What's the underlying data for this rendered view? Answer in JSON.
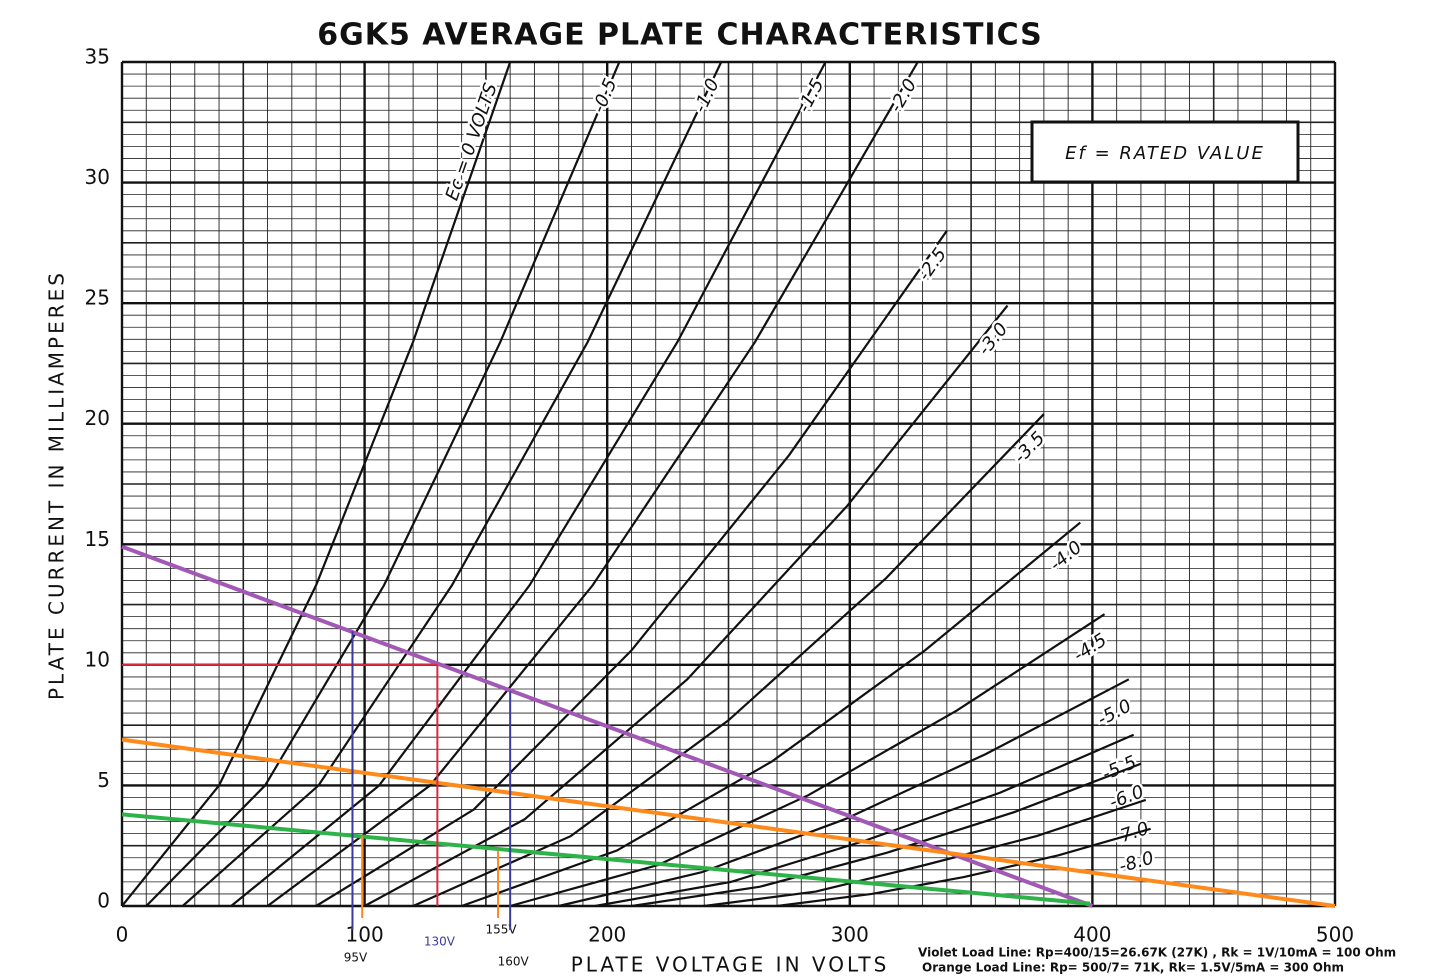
{
  "chart_data": {
    "type": "line",
    "title": "6GK5 AVERAGE PLATE CHARACTERISTICS",
    "xlabel": "PLATE VOLTAGE IN VOLTS",
    "ylabel": "PLATE CURRENT IN MILLIAMPERES",
    "xlim": [
      0,
      500
    ],
    "ylim": [
      0,
      35
    ],
    "xticks": [
      0,
      100,
      200,
      300,
      400,
      500
    ],
    "yticks": [
      0,
      5,
      10,
      15,
      20,
      25,
      30,
      35
    ],
    "xminor": 10,
    "yminor": 0.5,
    "grid": true,
    "box_label": "Ef = RATED VALUE",
    "series": [
      {
        "name": "Ec = 0 VOLTS",
        "color": "#111111",
        "x": [
          0,
          40,
          80,
          120,
          160
        ],
        "values": [
          0,
          5,
          13.3,
          23.4,
          35
        ]
      },
      {
        "name": "-0.5",
        "color": "#111111",
        "x": [
          10,
          59,
          108,
          156,
          205
        ],
        "values": [
          0,
          5,
          13.3,
          23.4,
          35
        ]
      },
      {
        "name": "-1.0",
        "color": "#111111",
        "x": [
          25,
          81,
          136,
          192,
          247
        ],
        "values": [
          0,
          5,
          13.3,
          23.4,
          35
        ]
      },
      {
        "name": "-1.5",
        "color": "#111111",
        "x": [
          45,
          106,
          168,
          229,
          290
        ],
        "values": [
          0,
          5,
          13.3,
          23.4,
          35
        ]
      },
      {
        "name": "-2.0",
        "color": "#111111",
        "x": [
          60,
          127,
          194,
          261,
          328
        ],
        "values": [
          0,
          5,
          13.3,
          23.4,
          35
        ]
      },
      {
        "name": "-2.5",
        "color": "#111111",
        "x": [
          80,
          145,
          210,
          275,
          340
        ],
        "values": [
          0,
          4,
          10.6,
          18.7,
          28
        ]
      },
      {
        "name": "-3.0",
        "color": "#111111",
        "x": [
          100,
          166,
          233,
          299,
          365
        ],
        "values": [
          0,
          3.6,
          9.4,
          16.6,
          24.9
        ]
      },
      {
        "name": "-3.5",
        "color": "#111111",
        "x": [
          120,
          185,
          250,
          315,
          380
        ],
        "values": [
          0,
          2.9,
          7.7,
          13.6,
          20.4
        ]
      },
      {
        "name": "-4.0",
        "color": "#111111",
        "x": [
          140,
          204,
          268,
          331,
          395
        ],
        "values": [
          0,
          2.3,
          6,
          10.6,
          15.9
        ]
      },
      {
        "name": "-4.5",
        "color": "#111111",
        "x": [
          160,
          221,
          283,
          344,
          405
        ],
        "values": [
          0,
          1.7,
          4.6,
          8.1,
          12.1
        ]
      },
      {
        "name": "-5.0",
        "color": "#111111",
        "x": [
          180,
          239,
          298,
          356,
          415
        ],
        "values": [
          0,
          1.4,
          3.6,
          6.3,
          9.4
        ]
      },
      {
        "name": "-5.5",
        "color": "#111111",
        "x": [
          195,
          251,
          306,
          362,
          417
        ],
        "values": [
          0,
          1,
          2.7,
          4.7,
          7.1
        ]
      },
      {
        "name": "-6.0",
        "color": "#111111",
        "x": [
          210,
          263,
          315,
          368,
          420
        ],
        "values": [
          0,
          0.8,
          2.2,
          3.9,
          5.9
        ]
      },
      {
        "name": "-7.0",
        "color": "#111111",
        "x": [
          240,
          286,
          331,
          377,
          422
        ],
        "values": [
          0,
          0.6,
          1.7,
          2.9,
          4.4
        ]
      },
      {
        "name": "-8.0",
        "color": "#111111",
        "x": [
          270,
          309,
          347,
          386,
          424
        ],
        "values": [
          0,
          0.5,
          1.2,
          2.1,
          3.2
        ]
      }
    ],
    "overlays": [
      {
        "color": "#a259b5",
        "width": 4,
        "x": [
          0,
          400
        ],
        "values": [
          14.9,
          0
        ]
      },
      {
        "color": "#ff8a1c",
        "width": 4,
        "x": [
          0,
          500
        ],
        "values": [
          6.9,
          0
        ]
      },
      {
        "color": "#2eb34a",
        "width": 4,
        "x": [
          0,
          399
        ],
        "values": [
          3.8,
          0.1
        ]
      },
      {
        "color": "#d8293f",
        "width": 2,
        "x": [
          0,
          130
        ],
        "values": [
          10,
          10
        ]
      },
      {
        "color": "#d8293f",
        "width": 2,
        "x": [
          130,
          130
        ],
        "values": [
          0,
          10
        ]
      },
      {
        "color": "#3a3aa0",
        "width": 2,
        "x": [
          95,
          95
        ],
        "values": [
          -1,
          11.4
        ],
        "label": "95V"
      },
      {
        "color": "#ff8a1c",
        "width": 2,
        "x": [
          99,
          99
        ],
        "values": [
          -0.5,
          2.9
        ]
      },
      {
        "color": "#ff8a1c",
        "width": 2,
        "x": [
          155,
          155
        ],
        "values": [
          -0.5,
          2.3
        ],
        "label": "155V"
      },
      {
        "color": "#3a3aa0",
        "width": 2,
        "x": [
          160,
          160
        ],
        "values": [
          -1,
          8.9
        ],
        "label": "160V"
      }
    ],
    "guide_label": {
      "x": 130,
      "text": "130V",
      "color": "#3a3aa0"
    },
    "notes": [
      "Violet Load Line:  Rp=400/15=26.67K  (27K) ,  Rk = 1V/10mA = 100 Ohm",
      "Orange Load Line: Rp= 500/7= 71K, Rk= 1.5V/5mA = 300 Ohm"
    ]
  }
}
